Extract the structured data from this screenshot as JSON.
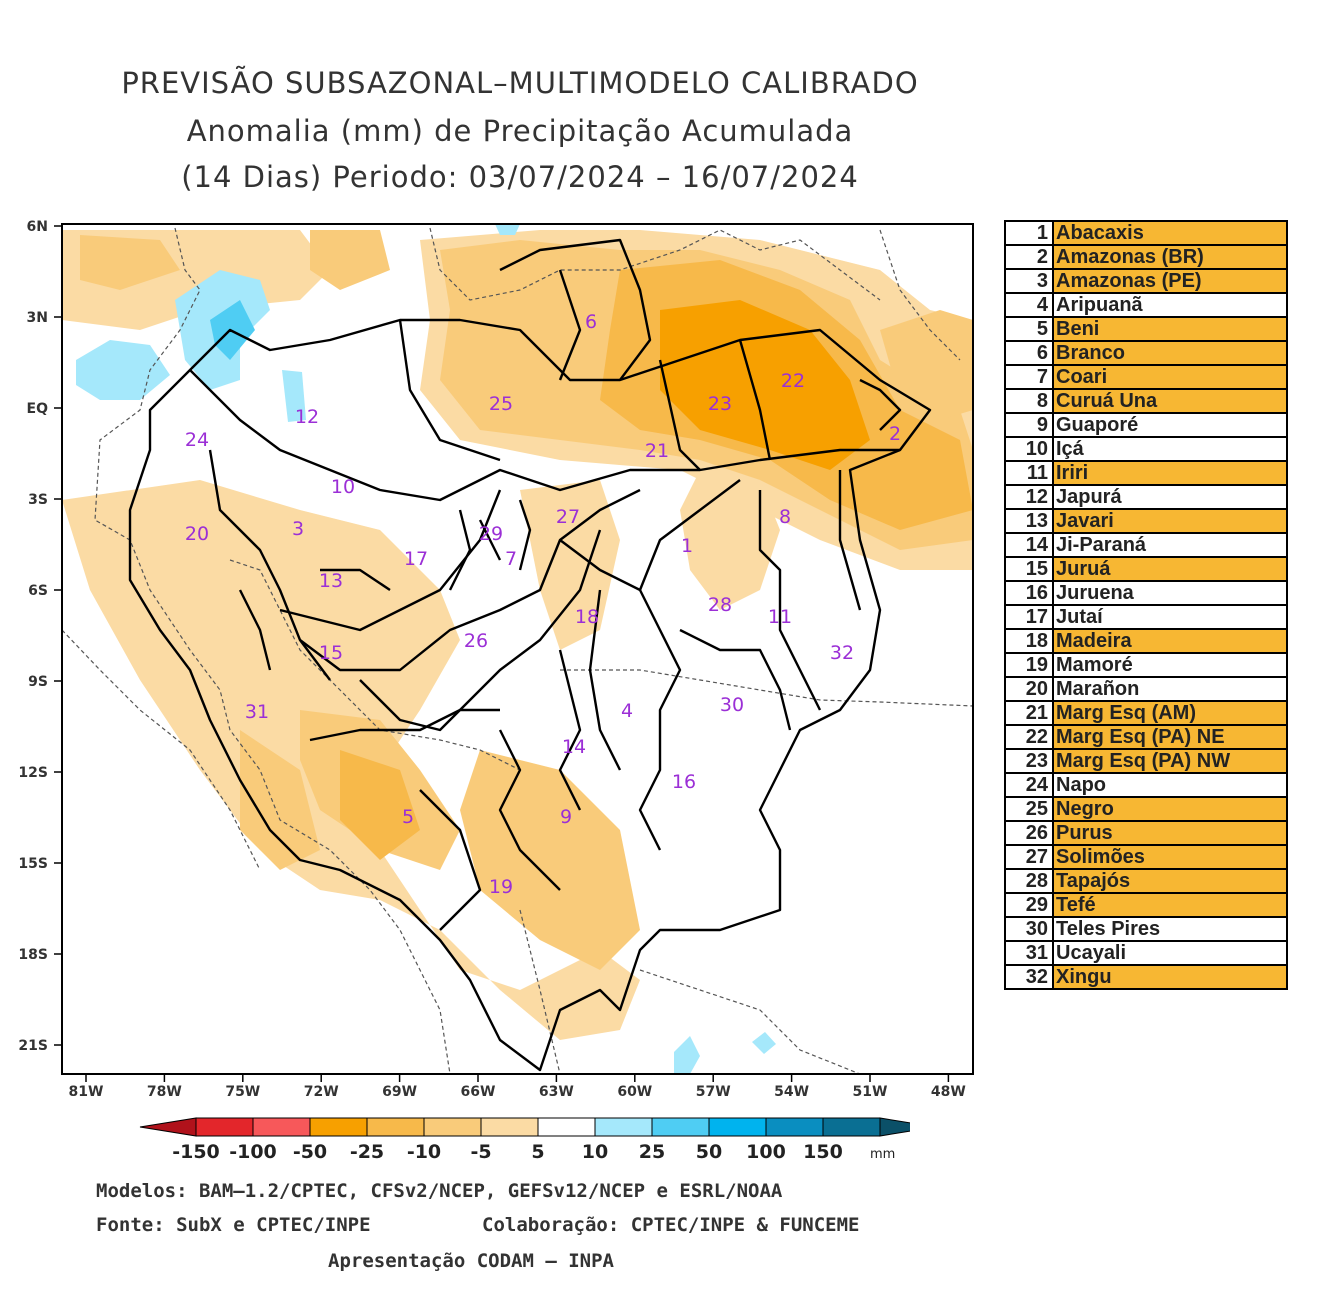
{
  "title": {
    "line1": "PREVISÃO SUBSAZONAL–MULTIMODELO CALIBRADO",
    "line2": "Anomalia (mm) de Precipitação Acumulada",
    "line3": "(14 Dias) Periodo: 03/07/2024 – 16/07/2024"
  },
  "axes": {
    "lat_labels": [
      "6N",
      "3N",
      "EQ",
      "3S",
      "6S",
      "9S",
      "12S",
      "15S",
      "18S",
      "21S"
    ],
    "lon_labels": [
      "81W",
      "78W",
      "75W",
      "72W",
      "69W",
      "66W",
      "63W",
      "60W",
      "57W",
      "54W",
      "51W",
      "48W"
    ]
  },
  "basin_labels": [
    "1",
    "2",
    "3",
    "4",
    "5",
    "6",
    "7",
    "8",
    "9",
    "10",
    "11",
    "12",
    "13",
    "14",
    "15",
    "16",
    "17",
    "18",
    "19",
    "20",
    "21",
    "22",
    "23",
    "24",
    "25",
    "26",
    "27",
    "28",
    "29",
    "30",
    "31",
    "32"
  ],
  "legend": [
    {
      "num": "1",
      "name": "Abacaxis",
      "highlight": true
    },
    {
      "num": "2",
      "name": "Amazonas (BR)",
      "highlight": true
    },
    {
      "num": "3",
      "name": "Amazonas (PE)",
      "highlight": true
    },
    {
      "num": "4",
      "name": "Aripuanã",
      "highlight": false
    },
    {
      "num": "5",
      "name": "Beni",
      "highlight": true
    },
    {
      "num": "6",
      "name": "Branco",
      "highlight": true
    },
    {
      "num": "7",
      "name": "Coari",
      "highlight": true
    },
    {
      "num": "8",
      "name": "Curuá Una",
      "highlight": true
    },
    {
      "num": "9",
      "name": "Guaporé",
      "highlight": false
    },
    {
      "num": "10",
      "name": "Içá",
      "highlight": false
    },
    {
      "num": "11",
      "name": "Iriri",
      "highlight": true
    },
    {
      "num": "12",
      "name": "Japurá",
      "highlight": false
    },
    {
      "num": "13",
      "name": "Javari",
      "highlight": true
    },
    {
      "num": "14",
      "name": "Ji-Paraná",
      "highlight": false
    },
    {
      "num": "15",
      "name": "Juruá",
      "highlight": true
    },
    {
      "num": "16",
      "name": "Juruena",
      "highlight": false
    },
    {
      "num": "17",
      "name": "Jutaí",
      "highlight": false
    },
    {
      "num": "18",
      "name": "Madeira",
      "highlight": true
    },
    {
      "num": "19",
      "name": "Mamoré",
      "highlight": false
    },
    {
      "num": "20",
      "name": "Marañon",
      "highlight": false
    },
    {
      "num": "21",
      "name": "Marg Esq (AM)",
      "highlight": true
    },
    {
      "num": "22",
      "name": "Marg Esq (PA) NE",
      "highlight": true
    },
    {
      "num": "23",
      "name": "Marg Esq (PA) NW",
      "highlight": true
    },
    {
      "num": "24",
      "name": "Napo",
      "highlight": false
    },
    {
      "num": "25",
      "name": "Negro",
      "highlight": true
    },
    {
      "num": "26",
      "name": "Purus",
      "highlight": true
    },
    {
      "num": "27",
      "name": "Solimões",
      "highlight": true
    },
    {
      "num": "28",
      "name": "Tapajós",
      "highlight": true
    },
    {
      "num": "29",
      "name": "Tefé",
      "highlight": true
    },
    {
      "num": "30",
      "name": "Teles Pires",
      "highlight": false
    },
    {
      "num": "31",
      "name": "Ucayali",
      "highlight": false
    },
    {
      "num": "32",
      "name": "Xingu",
      "highlight": true
    }
  ],
  "colorbar": {
    "labels": [
      "-150",
      "-100",
      "-50",
      "-25",
      "-10",
      "-5",
      "5",
      "10",
      "25",
      "50",
      "100",
      "150"
    ],
    "unit": "mm",
    "colors": [
      "#b0121b",
      "#e3262b",
      "#f7585a",
      "#f7a000",
      "#f7b94a",
      "#f9cb7a",
      "#fbdba4",
      "#ffffff",
      "#a5e8fb",
      "#4fcdf3",
      "#00b3ee",
      "#0a8ec0",
      "#0a6f93",
      "#0b5068"
    ]
  },
  "footer": {
    "models": "Modelos: BAM–1.2/CPTEC, CFSv2/NCEP, GEFSv12/NCEP e ESRL/NOAA",
    "source": "Fonte: SubX e CPTEC/INPE",
    "collab": "Colaboração: CPTEC/INPE & FUNCEME",
    "presentation": "Apresentação CODAM – INPA"
  }
}
